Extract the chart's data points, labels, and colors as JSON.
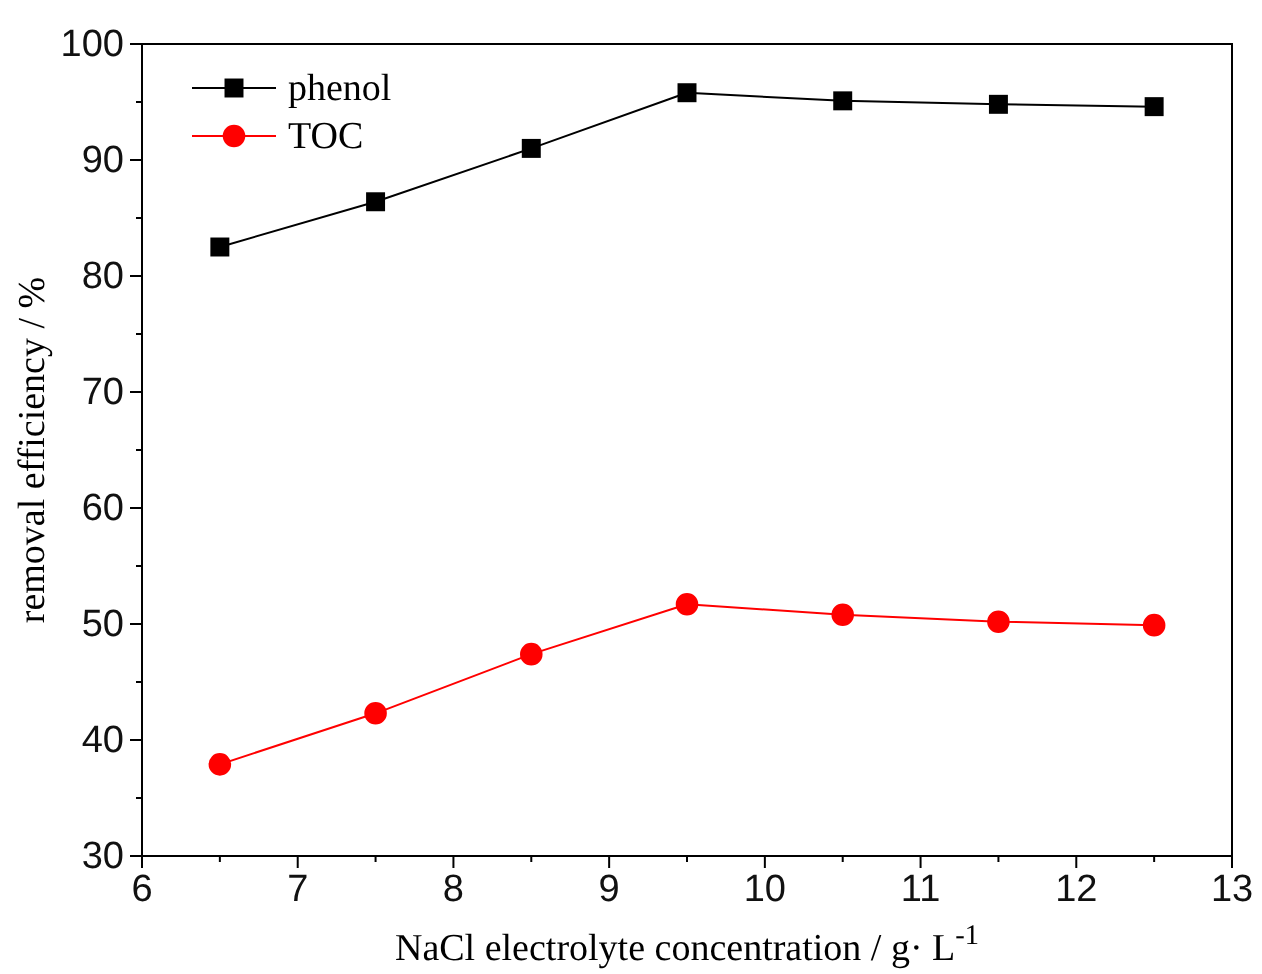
{
  "chart_data": {
    "type": "line",
    "xlabel": "NaCl electrolyte concentration / g· L$^{-1}$",
    "ylabel": "removal efficiency / %",
    "x": [
      6.5,
      7.5,
      8.5,
      9.5,
      10.5,
      11.5,
      12.5
    ],
    "series": [
      {
        "name": "phenol",
        "color": "#000000",
        "marker": "square",
        "values": [
          82.5,
          86.4,
          91.0,
          95.8,
          95.1,
          94.8,
          94.6
        ]
      },
      {
        "name": "TOC",
        "color": "#ff0000",
        "marker": "circle",
        "values": [
          37.9,
          42.3,
          47.4,
          51.7,
          50.8,
          50.2,
          49.9
        ]
      }
    ],
    "xlim": [
      6,
      13
    ],
    "xticks": [
      6,
      {
        "value": 6.5,
        "label": null
      },
      7,
      {
        "value": 7.5,
        "label": null
      },
      8,
      {
        "value": 8.5,
        "label": null
      },
      9,
      {
        "value": 9.5,
        "label": null
      },
      10,
      {
        "value": 10.5,
        "label": null
      },
      11,
      {
        "value": 11.5,
        "label": null
      },
      12,
      {
        "value": 12.5,
        "label": null
      },
      13
    ],
    "ylim": [
      30,
      100
    ],
    "yticks": [
      30,
      {
        "value": 35,
        "label": null
      },
      40,
      {
        "value": 45,
        "label": null
      },
      50,
      {
        "value": 55,
        "label": null
      },
      60,
      {
        "value": 65,
        "label": null
      },
      70,
      {
        "value": 75,
        "label": null
      },
      80,
      {
        "value": 85,
        "label": null
      },
      90,
      {
        "value": 95,
        "label": null
      },
      100
    ],
    "grid": false,
    "legend": "top left",
    "line_style": "solid"
  }
}
